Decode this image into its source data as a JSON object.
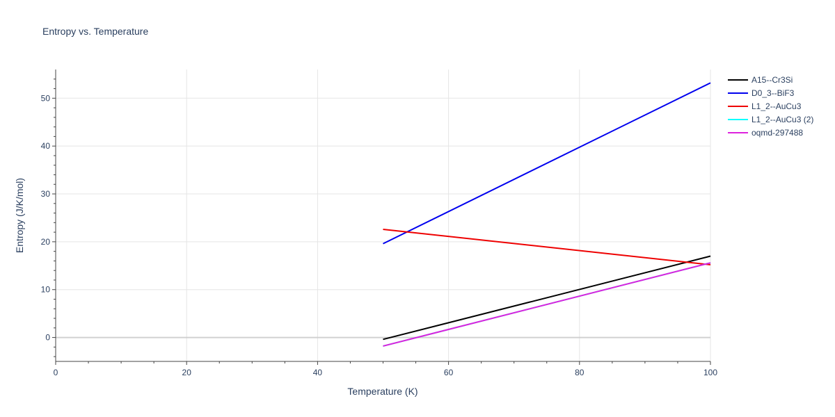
{
  "chart_data": {
    "type": "line",
    "title": "Entropy vs. Temperature",
    "xlabel": "Temperature (K)",
    "ylabel": "Entropy (J/K/mol)",
    "xlim": [
      0,
      100
    ],
    "ylim": [
      -5,
      56
    ],
    "xticks": [
      0,
      20,
      40,
      60,
      80,
      100
    ],
    "yticks": [
      0,
      10,
      20,
      30,
      40,
      50
    ],
    "grid": true,
    "legend_position": "top-right",
    "series": [
      {
        "name": "A15--Cr3Si",
        "color": "#000000",
        "x": [
          50,
          100
        ],
        "y": [
          -0.4,
          17.0
        ]
      },
      {
        "name": "D0_3--BiF3",
        "color": "#0000ee",
        "x": [
          50,
          100
        ],
        "y": [
          19.6,
          53.2
        ]
      },
      {
        "name": "L1_2--AuCu3",
        "color": "#ee0000",
        "x": [
          50,
          100
        ],
        "y": [
          22.6,
          15.2
        ]
      },
      {
        "name": "L1_2--AuCu3 (2)",
        "color": "#00ffff",
        "x": [
          50,
          100
        ],
        "y": [
          -1.8,
          15.6
        ]
      },
      {
        "name": "oqmd-297488",
        "color": "#dd22dd",
        "x": [
          50,
          100
        ],
        "y": [
          -1.8,
          15.6
        ]
      }
    ]
  }
}
